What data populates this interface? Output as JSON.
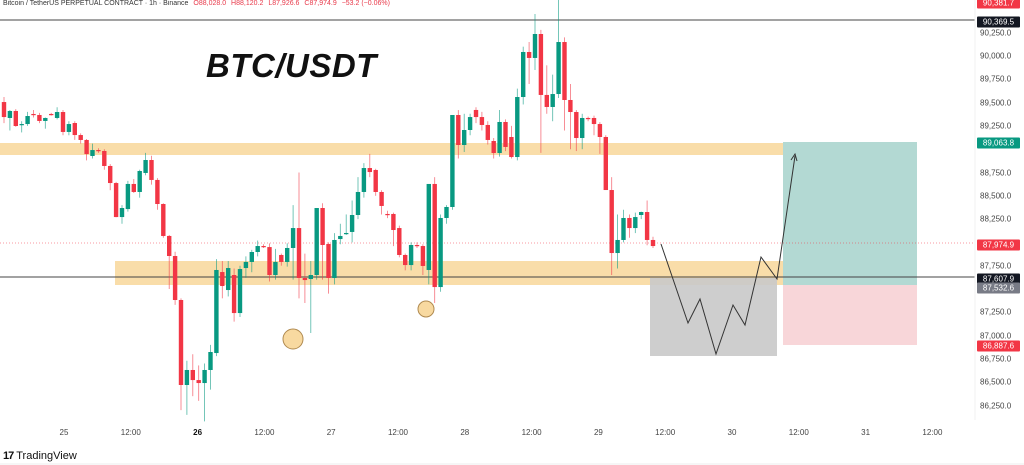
{
  "header": {
    "symbol": "Bitcoin / TetherUS PERPETUAL CONTRACT · 1h · Binance",
    "open": "O88,028.0",
    "high": "H88,120.2",
    "low": "L87,926.6",
    "close": "C87,974.9",
    "change": "−53.2 (−0.06%)"
  },
  "title": "BTC/USDT",
  "colors": {
    "up": "#089981",
    "down": "#f23645",
    "zone": "#f8d9a0",
    "target": "#b3d9d3",
    "stop": "#f8d6d9",
    "projection": "#c9c9c9"
  },
  "price_axis": {
    "ticks": [
      "90,250.0",
      "90,000.0",
      "89,750.0",
      "89,500.0",
      "89,250.0",
      "88,750.0",
      "88,500.0",
      "88,250.0",
      "87,750.0",
      "87,250.0",
      "87,000.0",
      "86,750.0",
      "86,500.0",
      "86,250.0"
    ],
    "badges": [
      {
        "label": "90,381.7",
        "color": "#f23645"
      },
      {
        "label": "90,369.5",
        "color": "#131722"
      },
      {
        "label": "89,063.8",
        "color": "#089981"
      },
      {
        "label": "87,974.9",
        "color": "#f23645"
      },
      {
        "label": "87,607.9",
        "color": "#131722"
      },
      {
        "label": "87,532.6",
        "color": "#787b86"
      },
      {
        "label": "86,887.6",
        "color": "#f23645"
      }
    ]
  },
  "time_axis": [
    "25",
    "12:00",
    "26",
    "12:00",
    "27",
    "12:00",
    "28",
    "12:00",
    "29",
    "12:00",
    "30",
    "12:00",
    "31",
    "12:00"
  ],
  "brand": "TradingView",
  "chart_data": {
    "type": "candlestick",
    "interval": "1h",
    "candles_ohlc": [
      [
        89506,
        89560,
        89280,
        89345
      ],
      [
        89335,
        89420,
        89200,
        89410
      ],
      [
        89410,
        89430,
        89240,
        89249
      ],
      [
        89260,
        89300,
        89180,
        89270
      ],
      [
        89270,
        89400,
        89250,
        89356
      ],
      [
        89378,
        89420,
        89340,
        89367
      ],
      [
        89367,
        89390,
        89280,
        89303
      ],
      [
        89303,
        89340,
        89220,
        89335
      ],
      [
        89378,
        89390,
        89360,
        89370
      ],
      [
        89335,
        89450,
        89320,
        89399
      ],
      [
        89399,
        89420,
        89150,
        89185
      ],
      [
        89185,
        89300,
        89150,
        89270
      ],
      [
        89281,
        89300,
        89100,
        89152
      ],
      [
        89152,
        89170,
        89060,
        89099
      ],
      [
        89099,
        89110,
        88880,
        88948
      ],
      [
        88927,
        89060,
        88900,
        88991
      ],
      [
        88991,
        89010,
        88960,
        88985
      ],
      [
        88981,
        89000,
        88780,
        88820
      ],
      [
        88820,
        88840,
        88560,
        88637
      ],
      [
        88637,
        88650,
        88270,
        88272
      ],
      [
        88272,
        88400,
        88200,
        88369
      ],
      [
        88358,
        88660,
        88330,
        88627
      ],
      [
        88627,
        88680,
        88530,
        88541
      ],
      [
        88541,
        88780,
        88480,
        88766
      ],
      [
        88745,
        88960,
        88720,
        88884
      ],
      [
        88884,
        88930,
        88620,
        88670
      ],
      [
        88670,
        88690,
        88350,
        88412
      ],
      [
        88412,
        88420,
        88050,
        88069
      ],
      [
        88069,
        88080,
        87500,
        87854
      ],
      [
        87854,
        87900,
        87330,
        87382
      ],
      [
        87382,
        87400,
        86200,
        86470
      ],
      [
        86470,
        86730,
        86150,
        86631
      ],
      [
        86631,
        86800,
        86350,
        86523
      ],
      [
        86523,
        86680,
        86300,
        86491
      ],
      [
        86491,
        86700,
        86080,
        86631
      ],
      [
        86631,
        86900,
        86420,
        86824
      ],
      [
        86813,
        87820,
        86780,
        87704
      ],
      [
        87682,
        87800,
        87400,
        87532
      ],
      [
        87489,
        87800,
        87420,
        87725
      ],
      [
        87650,
        87720,
        87150,
        87242
      ],
      [
        87242,
        87750,
        87200,
        87714
      ],
      [
        87725,
        87850,
        87620,
        87790
      ],
      [
        87790,
        87920,
        87680,
        87897
      ],
      [
        87897,
        88020,
        87850,
        87961
      ],
      [
        87961,
        87980,
        87940,
        87950
      ],
      [
        87950,
        87990,
        87580,
        87650
      ],
      [
        87650,
        87930,
        87600,
        87790
      ],
      [
        87865,
        87880,
        87750,
        87790
      ],
      [
        87790,
        87990,
        87740,
        87940
      ],
      [
        87940,
        88400,
        87600,
        88154
      ],
      [
        88154,
        88750,
        87400,
        87618
      ],
      [
        87618,
        87880,
        87350,
        87596
      ],
      [
        87607,
        87800,
        87028,
        87650
      ],
      [
        87650,
        88200,
        87600,
        88369
      ],
      [
        88369,
        88420,
        87600,
        87972
      ],
      [
        87983,
        88000,
        87450,
        87618
      ],
      [
        87618,
        88100,
        87550,
        88026
      ],
      [
        88036,
        88200,
        87980,
        88069
      ],
      [
        88090,
        88300,
        88080,
        88101
      ],
      [
        88112,
        88450,
        88000,
        88294
      ],
      [
        88294,
        88700,
        88250,
        88541
      ],
      [
        88541,
        88850,
        88480,
        88798
      ],
      [
        88798,
        88950,
        88700,
        88755
      ],
      [
        88777,
        88790,
        88500,
        88541
      ],
      [
        88541,
        88560,
        88300,
        88391
      ],
      [
        88305,
        88340,
        88260,
        88300
      ],
      [
        88305,
        88320,
        87960,
        88133
      ],
      [
        88154,
        88180,
        87840,
        87865
      ],
      [
        87865,
        87880,
        87700,
        87757
      ],
      [
        87757,
        88000,
        87700,
        87972
      ],
      [
        87972,
        88000,
        87940,
        87965
      ],
      [
        87961,
        87980,
        87650,
        87747
      ],
      [
        87704,
        88450,
        87550,
        88627
      ],
      [
        88627,
        88700,
        87350,
        87521
      ],
      [
        87521,
        88300,
        87470,
        88262
      ],
      [
        88262,
        88400,
        88200,
        88380
      ],
      [
        88380,
        89330,
        88350,
        89367
      ],
      [
        89367,
        89420,
        88900,
        89045
      ],
      [
        89045,
        89380,
        88970,
        89206
      ],
      [
        89206,
        89380,
        89150,
        89345
      ],
      [
        89421,
        89450,
        89280,
        89345
      ],
      [
        89345,
        89400,
        89200,
        89260
      ],
      [
        89260,
        89300,
        89050,
        89099
      ],
      [
        89088,
        89120,
        88900,
        88959
      ],
      [
        88959,
        89420,
        88920,
        89292
      ],
      [
        89292,
        89320,
        88980,
        89024
      ],
      [
        89131,
        89250,
        88900,
        88916
      ],
      [
        88916,
        89650,
        88880,
        89560
      ],
      [
        89560,
        90100,
        89480,
        90043
      ],
      [
        90043,
        90150,
        89700,
        89979
      ],
      [
        89979,
        90450,
        89850,
        90236
      ],
      [
        90236,
        90280,
        88960,
        89582
      ],
      [
        89582,
        89900,
        89380,
        89453
      ],
      [
        89453,
        89800,
        89300,
        89592
      ],
      [
        89592,
        90700,
        89550,
        90150
      ],
      [
        90150,
        90200,
        89200,
        89528
      ],
      [
        89528,
        89700,
        89000,
        89399
      ],
      [
        89399,
        89420,
        88980,
        89120
      ],
      [
        89120,
        89380,
        89000,
        89335
      ],
      [
        89335,
        89350,
        89300,
        89330
      ],
      [
        89335,
        89360,
        89150,
        89270
      ],
      [
        89270,
        89290,
        88950,
        89131
      ],
      [
        89131,
        89150,
        88800,
        88562
      ],
      [
        88562,
        88700,
        87650,
        87886
      ],
      [
        87886,
        88300,
        87720,
        88026
      ],
      [
        88026,
        88350,
        88000,
        88262
      ],
      [
        88262,
        88300,
        88050,
        88154
      ],
      [
        88154,
        88320,
        88100,
        88272
      ],
      [
        88294,
        88330,
        88250,
        88326
      ],
      [
        88326,
        88450,
        87970,
        88026
      ],
      [
        88026,
        88060,
        87940,
        87961
      ]
    ],
    "horizontal_lines": [
      90369.5,
      87607.9
    ],
    "last_price": 87974.9,
    "grid": false
  }
}
